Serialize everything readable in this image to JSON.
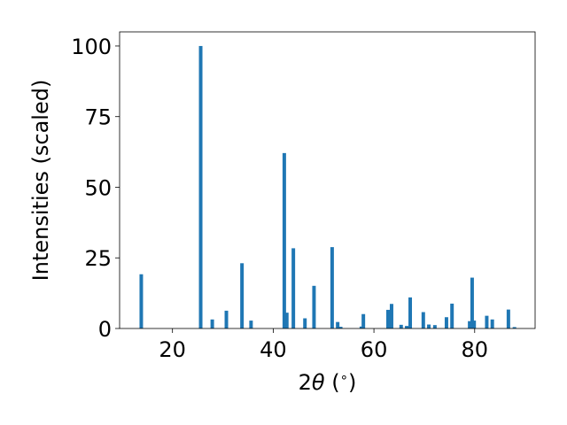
{
  "chart_data": {
    "type": "bar",
    "title": "",
    "xlabel_prefix": "2",
    "xlabel_symbol": "θ",
    "xlabel_suffix": " (",
    "xlabel_degree": "∘",
    "xlabel_close": ")",
    "ylabel": "Intensities (scaled)",
    "xlim": [
      9.5,
      92
    ],
    "ylim": [
      0,
      105
    ],
    "xticks": [
      20,
      40,
      60,
      80
    ],
    "yticks": [
      0,
      25,
      50,
      75,
      100
    ],
    "grid": false,
    "bar_color": "#1f77b4",
    "bar_width": 0.7,
    "series": [
      {
        "x": [
          13.8,
          25.6,
          27.9,
          30.7,
          33.8,
          35.6,
          42.2,
          42.7,
          44.0,
          46.3,
          48.1,
          51.7,
          52.8,
          53.4,
          57.5,
          57.9,
          62.8,
          63.5,
          65.4,
          66.5,
          67.2,
          69.8,
          70.9,
          72.1,
          74.4,
          75.5,
          79.0,
          79.5,
          79.9,
          82.4,
          83.5,
          86.7,
          87.9
        ],
        "values": [
          19.2,
          100,
          3.2,
          6.3,
          23.1,
          2.8,
          62.1,
          5.6,
          28.4,
          3.6,
          15.1,
          28.8,
          2.3,
          0.6,
          0.7,
          5.1,
          6.6,
          8.7,
          1.3,
          0.9,
          11.0,
          5.8,
          1.4,
          1.2,
          4.0,
          8.8,
          2.6,
          18.0,
          2.8,
          4.5,
          3.2,
          6.7,
          0.5
        ]
      }
    ]
  }
}
